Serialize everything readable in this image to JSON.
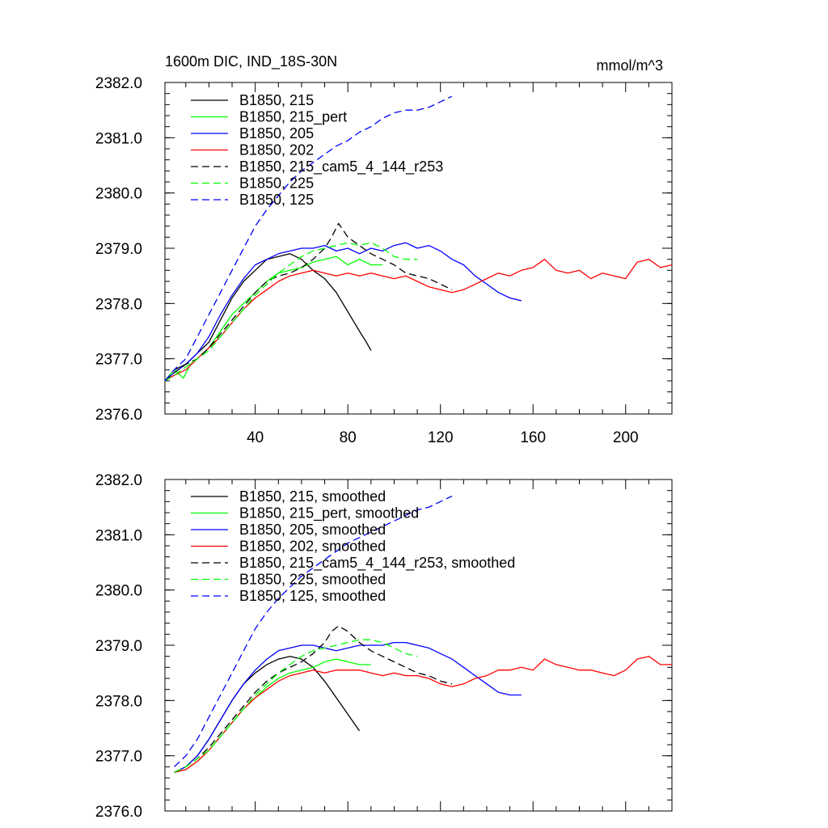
{
  "header": {
    "title": "1600m DIC, IND_18S-30N",
    "units": "mmol/m^3"
  },
  "chart_data": [
    {
      "type": "line",
      "title": "1600m DIC, IND_18S-30N",
      "units": "mmol/m^3",
      "xlim": [
        1,
        220
      ],
      "ylim": [
        2376.0,
        2382.0
      ],
      "x_ticks": [
        40,
        80,
        120,
        160,
        200
      ],
      "y_ticks": [
        2376.0,
        2377.0,
        2378.0,
        2379.0,
        2380.0,
        2381.0,
        2382.0
      ],
      "y_tick_labels": [
        "2376.0",
        "2377.0",
        "2378.0",
        "2379.0",
        "2380.0",
        "2381.0",
        "2382.0"
      ],
      "legend_position": "top-left",
      "series": [
        {
          "name": "B1850, 215",
          "color": "#000000",
          "dash": "solid",
          "x": [
            1,
            5,
            10,
            15,
            20,
            25,
            30,
            35,
            40,
            45,
            50,
            55,
            60,
            65,
            70,
            75,
            80,
            85,
            88,
            90
          ],
          "y": [
            2376.6,
            2376.8,
            2376.9,
            2377.1,
            2377.3,
            2377.7,
            2378.1,
            2378.4,
            2378.6,
            2378.8,
            2378.85,
            2378.9,
            2378.8,
            2378.6,
            2378.45,
            2378.2,
            2377.85,
            2377.5,
            2377.3,
            2377.15
          ]
        },
        {
          "name": "B1850, 215_pert",
          "color": "#00ff00",
          "dash": "solid",
          "x": [
            1,
            5,
            9,
            12,
            15,
            20,
            25,
            30,
            35,
            40,
            45,
            50,
            55,
            60,
            65,
            70,
            75,
            80,
            85,
            90,
            95
          ],
          "y": [
            2376.6,
            2376.8,
            2376.65,
            2376.9,
            2377.0,
            2377.2,
            2377.5,
            2377.8,
            2378.0,
            2378.2,
            2378.4,
            2378.55,
            2378.6,
            2378.65,
            2378.75,
            2378.8,
            2378.85,
            2378.7,
            2378.8,
            2378.7,
            2378.7
          ]
        },
        {
          "name": "B1850, 205",
          "color": "#0000ff",
          "dash": "solid",
          "x": [
            1,
            5,
            10,
            15,
            20,
            25,
            30,
            35,
            40,
            45,
            50,
            55,
            60,
            65,
            70,
            75,
            80,
            85,
            90,
            95,
            100,
            105,
            110,
            115,
            120,
            125,
            130,
            135,
            140,
            145,
            150,
            155
          ],
          "y": [
            2376.6,
            2376.75,
            2376.9,
            2377.1,
            2377.4,
            2377.8,
            2378.15,
            2378.45,
            2378.7,
            2378.8,
            2378.9,
            2378.95,
            2379.0,
            2379.0,
            2379.05,
            2378.95,
            2379.0,
            2378.9,
            2379.0,
            2378.95,
            2379.05,
            2379.1,
            2379.0,
            2379.05,
            2378.95,
            2378.8,
            2378.7,
            2378.5,
            2378.35,
            2378.2,
            2378.1,
            2378.05
          ]
        },
        {
          "name": "B1850, 202",
          "color": "#ff0000",
          "dash": "solid",
          "x": [
            1,
            5,
            10,
            15,
            20,
            25,
            30,
            35,
            40,
            45,
            50,
            55,
            60,
            65,
            70,
            75,
            80,
            85,
            90,
            95,
            100,
            105,
            110,
            115,
            120,
            125,
            130,
            135,
            140,
            145,
            150,
            155,
            160,
            165,
            170,
            175,
            180,
            185,
            190,
            195,
            200,
            205,
            210,
            215,
            220
          ],
          "y": [
            2376.6,
            2376.7,
            2376.8,
            2377.0,
            2377.2,
            2377.4,
            2377.65,
            2377.9,
            2378.1,
            2378.25,
            2378.4,
            2378.5,
            2378.55,
            2378.6,
            2378.55,
            2378.5,
            2378.55,
            2378.5,
            2378.55,
            2378.5,
            2378.45,
            2378.5,
            2378.4,
            2378.3,
            2378.25,
            2378.2,
            2378.25,
            2378.35,
            2378.45,
            2378.55,
            2378.5,
            2378.6,
            2378.65,
            2378.8,
            2378.6,
            2378.55,
            2378.6,
            2378.45,
            2378.55,
            2378.5,
            2378.45,
            2378.75,
            2378.8,
            2378.65,
            2378.7
          ]
        },
        {
          "name": "B1850, 215_cam5_4_144_r253",
          "color": "#000000",
          "dash": "dashed",
          "x": [
            1,
            5,
            10,
            15,
            20,
            25,
            30,
            35,
            40,
            45,
            50,
            55,
            60,
            65,
            70,
            73,
            76,
            80,
            85,
            90,
            95,
            100,
            105,
            110,
            115,
            120,
            125
          ],
          "y": [
            2376.6,
            2376.75,
            2376.9,
            2377.0,
            2377.2,
            2377.45,
            2377.7,
            2377.95,
            2378.2,
            2378.4,
            2378.5,
            2378.55,
            2378.65,
            2378.8,
            2379.0,
            2379.2,
            2379.45,
            2379.2,
            2379.05,
            2378.9,
            2378.8,
            2378.7,
            2378.55,
            2378.5,
            2378.45,
            2378.35,
            2378.25
          ]
        },
        {
          "name": "B1850, 225",
          "color": "#00ff00",
          "dash": "dashed",
          "x": [
            1,
            5,
            10,
            15,
            20,
            25,
            30,
            35,
            40,
            45,
            50,
            55,
            60,
            65,
            70,
            75,
            80,
            85,
            90,
            95,
            100,
            105,
            110
          ],
          "y": [
            2376.6,
            2376.7,
            2376.85,
            2377.0,
            2377.15,
            2377.4,
            2377.65,
            2377.9,
            2378.15,
            2378.35,
            2378.55,
            2378.7,
            2378.85,
            2378.95,
            2379.0,
            2379.05,
            2379.1,
            2379.05,
            2379.1,
            2379.0,
            2378.85,
            2378.8,
            2378.8
          ]
        },
        {
          "name": "B1850, 125",
          "color": "#0000ff",
          "dash": "dashed",
          "x": [
            1,
            5,
            10,
            15,
            20,
            25,
            30,
            35,
            40,
            45,
            50,
            55,
            60,
            65,
            70,
            75,
            80,
            85,
            90,
            95,
            100,
            105,
            110,
            115,
            120,
            125
          ],
          "y": [
            2376.6,
            2376.8,
            2377.0,
            2377.4,
            2377.8,
            2378.2,
            2378.6,
            2379.0,
            2379.4,
            2379.7,
            2379.95,
            2380.2,
            2380.4,
            2380.55,
            2380.7,
            2380.85,
            2380.95,
            2381.1,
            2381.2,
            2381.35,
            2381.45,
            2381.5,
            2381.5,
            2381.55,
            2381.65,
            2381.75
          ]
        }
      ]
    },
    {
      "type": "line",
      "xlim": [
        1,
        220
      ],
      "ylim": [
        2376.0,
        2382.0
      ],
      "x_ticks": [
        40,
        80,
        120,
        160,
        200
      ],
      "y_ticks": [
        2376.0,
        2377.0,
        2378.0,
        2379.0,
        2380.0,
        2381.0,
        2382.0
      ],
      "y_tick_labels": [
        "2376.0",
        "2377.0",
        "2378.0",
        "2379.0",
        "2380.0",
        "2381.0",
        "2382.0"
      ],
      "legend_position": "top-left",
      "series": [
        {
          "name": "B1850, 215, smoothed",
          "color": "#000000",
          "dash": "solid",
          "x": [
            5,
            10,
            15,
            20,
            25,
            30,
            35,
            40,
            45,
            50,
            55,
            60,
            65,
            70,
            75,
            80,
            85
          ],
          "y": [
            2376.7,
            2376.8,
            2377.0,
            2377.3,
            2377.65,
            2378.0,
            2378.3,
            2378.5,
            2378.65,
            2378.75,
            2378.8,
            2378.75,
            2378.6,
            2378.35,
            2378.05,
            2377.75,
            2377.45
          ]
        },
        {
          "name": "B1850, 215_pert, smoothed",
          "color": "#00ff00",
          "dash": "solid",
          "x": [
            5,
            10,
            15,
            20,
            25,
            30,
            35,
            40,
            45,
            50,
            55,
            60,
            65,
            70,
            75,
            80,
            85,
            90
          ],
          "y": [
            2376.7,
            2376.75,
            2376.9,
            2377.1,
            2377.35,
            2377.6,
            2377.85,
            2378.05,
            2378.25,
            2378.4,
            2378.5,
            2378.55,
            2378.6,
            2378.7,
            2378.75,
            2378.7,
            2378.65,
            2378.65
          ]
        },
        {
          "name": "B1850, 205, smoothed",
          "color": "#0000ff",
          "dash": "solid",
          "x": [
            5,
            10,
            15,
            20,
            25,
            30,
            35,
            40,
            45,
            50,
            55,
            60,
            65,
            70,
            75,
            80,
            85,
            90,
            95,
            100,
            105,
            110,
            115,
            120,
            125,
            130,
            135,
            140,
            145,
            150,
            155
          ],
          "y": [
            2376.7,
            2376.8,
            2377.0,
            2377.3,
            2377.65,
            2378.0,
            2378.3,
            2378.55,
            2378.75,
            2378.9,
            2378.95,
            2379.0,
            2379.0,
            2378.95,
            2378.9,
            2378.95,
            2379.0,
            2379.0,
            2379.0,
            2379.05,
            2379.05,
            2379.0,
            2378.95,
            2378.85,
            2378.75,
            2378.6,
            2378.45,
            2378.3,
            2378.15,
            2378.1,
            2378.1
          ]
        },
        {
          "name": "B1850, 202, smoothed",
          "color": "#ff0000",
          "dash": "solid",
          "x": [
            5,
            10,
            15,
            20,
            25,
            30,
            35,
            40,
            45,
            50,
            55,
            60,
            65,
            70,
            75,
            80,
            85,
            90,
            95,
            100,
            105,
            110,
            115,
            120,
            125,
            130,
            135,
            140,
            145,
            150,
            155,
            160,
            165,
            170,
            175,
            180,
            185,
            190,
            195,
            200,
            205,
            210,
            215,
            220
          ],
          "y": [
            2376.7,
            2376.75,
            2376.9,
            2377.1,
            2377.35,
            2377.6,
            2377.85,
            2378.05,
            2378.2,
            2378.35,
            2378.45,
            2378.5,
            2378.55,
            2378.5,
            2378.55,
            2378.55,
            2378.55,
            2378.5,
            2378.45,
            2378.5,
            2378.45,
            2378.45,
            2378.4,
            2378.3,
            2378.25,
            2378.3,
            2378.4,
            2378.45,
            2378.55,
            2378.55,
            2378.6,
            2378.55,
            2378.75,
            2378.65,
            2378.6,
            2378.55,
            2378.55,
            2378.5,
            2378.45,
            2378.55,
            2378.75,
            2378.8,
            2378.65,
            2378.65
          ]
        },
        {
          "name": "B1850, 215_cam5_4_144_r253, smoothed",
          "color": "#000000",
          "dash": "dashed",
          "x": [
            5,
            10,
            15,
            20,
            25,
            30,
            35,
            40,
            45,
            50,
            55,
            60,
            65,
            70,
            73,
            76,
            80,
            85,
            90,
            95,
            100,
            105,
            110,
            115,
            120,
            125
          ],
          "y": [
            2376.7,
            2376.8,
            2376.95,
            2377.15,
            2377.4,
            2377.65,
            2377.9,
            2378.15,
            2378.35,
            2378.5,
            2378.6,
            2378.7,
            2378.85,
            2379.05,
            2379.25,
            2379.35,
            2379.25,
            2379.05,
            2378.9,
            2378.8,
            2378.7,
            2378.6,
            2378.5,
            2378.45,
            2378.35,
            2378.3
          ]
        },
        {
          "name": "B1850, 225, smoothed",
          "color": "#00ff00",
          "dash": "dashed",
          "x": [
            5,
            10,
            15,
            20,
            25,
            30,
            35,
            40,
            45,
            50,
            55,
            60,
            65,
            70,
            75,
            80,
            85,
            90,
            95,
            100,
            105,
            110
          ],
          "y": [
            2376.7,
            2376.8,
            2376.95,
            2377.1,
            2377.35,
            2377.6,
            2377.85,
            2378.1,
            2378.3,
            2378.5,
            2378.65,
            2378.8,
            2378.9,
            2378.95,
            2379.0,
            2379.05,
            2379.1,
            2379.1,
            2379.05,
            2378.95,
            2378.85,
            2378.8
          ]
        },
        {
          "name": "B1850, 125, smoothed",
          "color": "#0000ff",
          "dash": "dashed",
          "x": [
            5,
            10,
            15,
            20,
            25,
            30,
            35,
            40,
            45,
            50,
            55,
            60,
            65,
            70,
            75,
            80,
            85,
            90,
            95,
            100,
            105,
            110,
            115,
            120,
            125
          ],
          "y": [
            2376.8,
            2377.0,
            2377.3,
            2377.7,
            2378.1,
            2378.5,
            2378.9,
            2379.3,
            2379.6,
            2379.85,
            2380.05,
            2380.25,
            2380.4,
            2380.55,
            2380.7,
            2380.85,
            2380.95,
            2381.05,
            2381.15,
            2381.25,
            2381.35,
            2381.45,
            2381.5,
            2381.6,
            2381.7
          ]
        }
      ]
    }
  ]
}
